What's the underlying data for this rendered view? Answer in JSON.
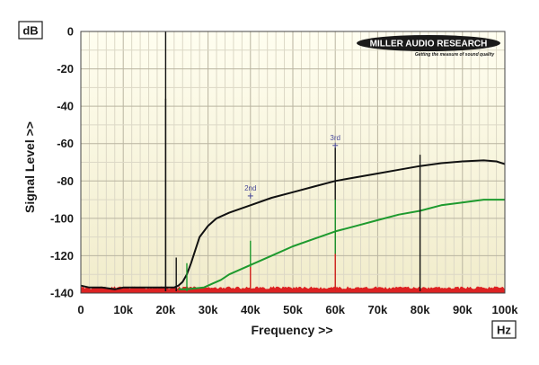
{
  "chart_data": {
    "type": "line",
    "title": "",
    "xlabel": "Frequency >>",
    "ylabel": "Signal Level >>",
    "x_unit": "Hz",
    "y_unit": "dB",
    "xlim": [
      0,
      100000
    ],
    "ylim": [
      -140,
      0
    ],
    "grid": true,
    "x_ticks": [
      0,
      10000,
      20000,
      30000,
      40000,
      50000,
      60000,
      70000,
      80000,
      90000,
      100000
    ],
    "x_tick_labels": [
      "0",
      "10k",
      "20k",
      "30k",
      "40k",
      "50k",
      "60k",
      "70k",
      "80k",
      "90k",
      "100k"
    ],
    "y_ticks": [
      0,
      -20,
      -40,
      -60,
      -80,
      -100,
      -120,
      -140
    ],
    "y_tick_labels": [
      "0",
      "-20",
      "-40",
      "-60",
      "-80",
      "-100",
      "-120",
      "-140"
    ],
    "series": [
      {
        "color": "#111111",
        "x": [
          0,
          2000,
          5000,
          8000,
          10000,
          12000,
          15000,
          18000,
          20000,
          22000,
          23000,
          24000,
          25000,
          26000,
          27000,
          28000,
          30000,
          32000,
          35000,
          40000,
          45000,
          50000,
          55000,
          60000,
          65000,
          70000,
          75000,
          80000,
          85000,
          90000,
          95000,
          98000,
          100000
        ],
        "y": [
          -136,
          -137,
          -137,
          -138,
          -137,
          -137,
          -137,
          -137,
          -137,
          -137,
          -136,
          -134,
          -130,
          -124,
          -117,
          -110,
          -104,
          -100,
          -97,
          -93,
          -89,
          -86,
          -83,
          -80,
          -78,
          -76,
          -74,
          -72,
          -70.5,
          -69.5,
          -69,
          -69.5,
          -71
        ]
      },
      {
        "color": "#1e9a2e",
        "x": [
          23000,
          25000,
          27000,
          29000,
          31000,
          33000,
          35000,
          40000,
          45000,
          50000,
          55000,
          60000,
          65000,
          70000,
          75000,
          80000,
          85000,
          90000,
          95000,
          100000
        ],
        "y": [
          -138,
          -138,
          -137.5,
          -137,
          -135,
          -133,
          -130,
          -125,
          -120,
          -115,
          -111,
          -107,
          -104,
          -101,
          -98,
          -96,
          -93,
          -91.5,
          -90,
          -90
        ]
      },
      {
        "color": "#dd2222",
        "x": [
          0,
          100000
        ],
        "y": [
          -138,
          -138
        ]
      }
    ],
    "spikes": [
      {
        "x": 20000,
        "y": 0,
        "color": "#111111"
      },
      {
        "x": 20000,
        "y": -36,
        "color": "#111111"
      },
      {
        "x": 22500,
        "y": -121,
        "color": "#111111"
      },
      {
        "x": 40000,
        "y": -112,
        "color": "#1e9a2e"
      },
      {
        "x": 60000,
        "y": -62,
        "color": "#111111"
      },
      {
        "x": 60000,
        "y": -90,
        "color": "#1e9a2e"
      },
      {
        "x": 80000,
        "y": -66,
        "color": "#111111"
      },
      {
        "x": 25000,
        "y": -124,
        "color": "#1e9a2e"
      },
      {
        "x": 40000,
        "y": -126,
        "color": "#dd2222"
      },
      {
        "x": 60000,
        "y": -119,
        "color": "#dd2222"
      }
    ],
    "annotations": [
      {
        "label": "2nd",
        "x": 40000,
        "y": -88
      },
      {
        "label": "3rd",
        "x": 60000,
        "y": -61
      }
    ],
    "logo": {
      "text_main": "MILLER AUDIO RESEARCH",
      "text_sub": "Getting the measure of sound quality"
    }
  }
}
